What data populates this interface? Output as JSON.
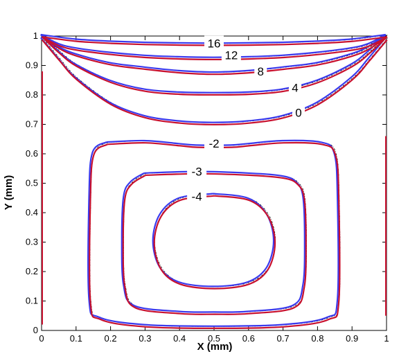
{
  "chart_data": {
    "type": "line",
    "title": "",
    "xlabel": "X (mm)",
    "ylabel": "Y (mm)",
    "xlim": [
      0,
      1
    ],
    "ylim": [
      0,
      1
    ],
    "grid": false,
    "x_ticks": [
      "0",
      "0.1",
      "0.2",
      "0.3",
      "0.4",
      "0.5",
      "0.6",
      "0.7",
      "0.8",
      "0.9",
      "1"
    ],
    "y_ticks": [
      "0",
      "0.1",
      "0.2",
      "0.3",
      "0.4",
      "0.5",
      "0.6",
      "0.7",
      "0.8",
      "0.9",
      "1"
    ],
    "x_tick_values": [
      0,
      0.1,
      0.2,
      0.3,
      0.4,
      0.5,
      0.6,
      0.7,
      0.8,
      0.9,
      1
    ],
    "y_tick_values": [
      0,
      0.1,
      0.2,
      0.3,
      0.4,
      0.5,
      0.6,
      0.7,
      0.8,
      0.9,
      1
    ],
    "colors": {
      "blue": "#3a3aee",
      "red": "#c8102e",
      "gray": "#000000"
    },
    "contours": [
      {
        "level": "16",
        "label_pos": [
          0.5,
          0.975
        ],
        "points": [
          [
            0,
            1
          ],
          [
            0.1,
            0.985
          ],
          [
            0.2,
            0.978
          ],
          [
            0.3,
            0.974
          ],
          [
            0.4,
            0.972
          ],
          [
            0.5,
            0.971
          ],
          [
            0.6,
            0.972
          ],
          [
            0.7,
            0.974
          ],
          [
            0.8,
            0.978
          ],
          [
            0.9,
            0.985
          ],
          [
            1,
            1
          ]
        ]
      },
      {
        "level": "12",
        "label_pos": [
          0.55,
          0.935
        ],
        "points": [
          [
            0,
            1
          ],
          [
            0.05,
            0.97
          ],
          [
            0.1,
            0.955
          ],
          [
            0.2,
            0.94
          ],
          [
            0.3,
            0.93
          ],
          [
            0.4,
            0.925
          ],
          [
            0.5,
            0.923
          ],
          [
            0.6,
            0.925
          ],
          [
            0.7,
            0.93
          ],
          [
            0.8,
            0.94
          ],
          [
            0.9,
            0.955
          ],
          [
            0.95,
            0.97
          ],
          [
            1,
            1
          ]
        ]
      },
      {
        "level": "8",
        "label_pos": [
          0.635,
          0.88
        ],
        "points": [
          [
            0,
            1
          ],
          [
            0.05,
            0.96
          ],
          [
            0.1,
            0.935
          ],
          [
            0.2,
            0.905
          ],
          [
            0.3,
            0.89
          ],
          [
            0.4,
            0.878
          ],
          [
            0.5,
            0.873
          ],
          [
            0.6,
            0.878
          ],
          [
            0.7,
            0.89
          ],
          [
            0.8,
            0.905
          ],
          [
            0.9,
            0.935
          ],
          [
            0.95,
            0.96
          ],
          [
            1,
            1
          ]
        ]
      },
      {
        "level": "4",
        "label_pos": [
          0.735,
          0.825
        ],
        "points": [
          [
            0,
            1
          ],
          [
            0.05,
            0.945
          ],
          [
            0.1,
            0.9
          ],
          [
            0.2,
            0.845
          ],
          [
            0.3,
            0.815
          ],
          [
            0.4,
            0.805
          ],
          [
            0.5,
            0.803
          ],
          [
            0.6,
            0.805
          ],
          [
            0.7,
            0.815
          ],
          [
            0.8,
            0.845
          ],
          [
            0.9,
            0.9
          ],
          [
            0.95,
            0.945
          ],
          [
            1,
            1
          ]
        ]
      },
      {
        "level": "0",
        "label_pos": [
          0.745,
          0.74
        ],
        "points": [
          [
            0,
            0.99
          ],
          [
            0.05,
            0.92
          ],
          [
            0.1,
            0.855
          ],
          [
            0.2,
            0.77
          ],
          [
            0.3,
            0.725
          ],
          [
            0.4,
            0.707
          ],
          [
            0.5,
            0.702
          ],
          [
            0.6,
            0.707
          ],
          [
            0.7,
            0.725
          ],
          [
            0.8,
            0.77
          ],
          [
            0.9,
            0.855
          ],
          [
            0.95,
            0.92
          ],
          [
            1,
            0.99
          ]
        ]
      },
      {
        "level": "-2",
        "label_pos": [
          0.5,
          0.635
        ],
        "points": [
          [
            0.19,
            0.635
          ],
          [
            0.3,
            0.64
          ],
          [
            0.4,
            0.63
          ],
          [
            0.45,
            0.625
          ],
          [
            0.55,
            0.625
          ],
          [
            0.6,
            0.63
          ],
          [
            0.7,
            0.64
          ],
          [
            0.81,
            0.635
          ],
          [
            0.85,
            0.6
          ],
          [
            0.86,
            0.45
          ],
          [
            0.86,
            0.1
          ],
          [
            0.83,
            0.04
          ],
          [
            0.7,
            0.015
          ],
          [
            0.5,
            0.01
          ],
          [
            0.3,
            0.015
          ],
          [
            0.17,
            0.04
          ],
          [
            0.14,
            0.1
          ],
          [
            0.14,
            0.45
          ],
          [
            0.15,
            0.6
          ],
          [
            0.19,
            0.635
          ]
        ]
      },
      {
        "level": "-3",
        "label_pos": [
          0.45,
          0.54
        ],
        "points": [
          [
            0.3,
            0.53
          ],
          [
            0.45,
            0.535
          ],
          [
            0.6,
            0.53
          ],
          [
            0.7,
            0.52
          ],
          [
            0.74,
            0.5
          ],
          [
            0.76,
            0.45
          ],
          [
            0.765,
            0.3
          ],
          [
            0.76,
            0.15
          ],
          [
            0.73,
            0.08
          ],
          [
            0.6,
            0.06
          ],
          [
            0.5,
            0.058
          ],
          [
            0.4,
            0.06
          ],
          [
            0.27,
            0.08
          ],
          [
            0.24,
            0.15
          ],
          [
            0.235,
            0.3
          ],
          [
            0.24,
            0.45
          ],
          [
            0.26,
            0.5
          ],
          [
            0.3,
            0.53
          ]
        ]
      },
      {
        "level": "-4",
        "label_pos": [
          0.45,
          0.455
        ],
        "points": [
          [
            0.5,
            0.46
          ],
          [
            0.6,
            0.445
          ],
          [
            0.655,
            0.39
          ],
          [
            0.675,
            0.3
          ],
          [
            0.655,
            0.21
          ],
          [
            0.6,
            0.16
          ],
          [
            0.5,
            0.145
          ],
          [
            0.4,
            0.16
          ],
          [
            0.345,
            0.21
          ],
          [
            0.325,
            0.3
          ],
          [
            0.345,
            0.39
          ],
          [
            0.4,
            0.445
          ],
          [
            0.5,
            0.46
          ]
        ]
      }
    ],
    "edge_segments": [
      {
        "points": [
          [
            0.002,
            0.88
          ],
          [
            0.002,
            0.02
          ]
        ]
      },
      {
        "points": [
          [
            0.998,
            0.66
          ],
          [
            0.998,
            0.05
          ]
        ]
      }
    ]
  }
}
